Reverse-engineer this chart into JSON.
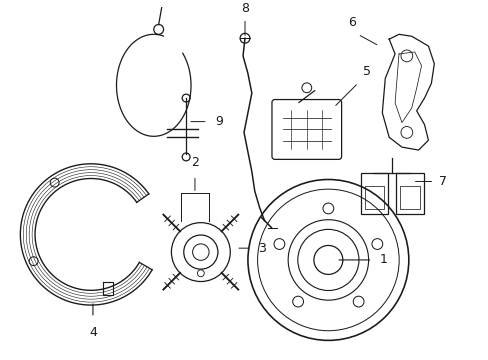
{
  "background_color": "#ffffff",
  "line_color": "#1a1a1a",
  "label_color": "#000000",
  "figsize": [
    4.89,
    3.6
  ],
  "dpi": 100,
  "xlim": [
    0,
    489
  ],
  "ylim": [
    0,
    360
  ]
}
